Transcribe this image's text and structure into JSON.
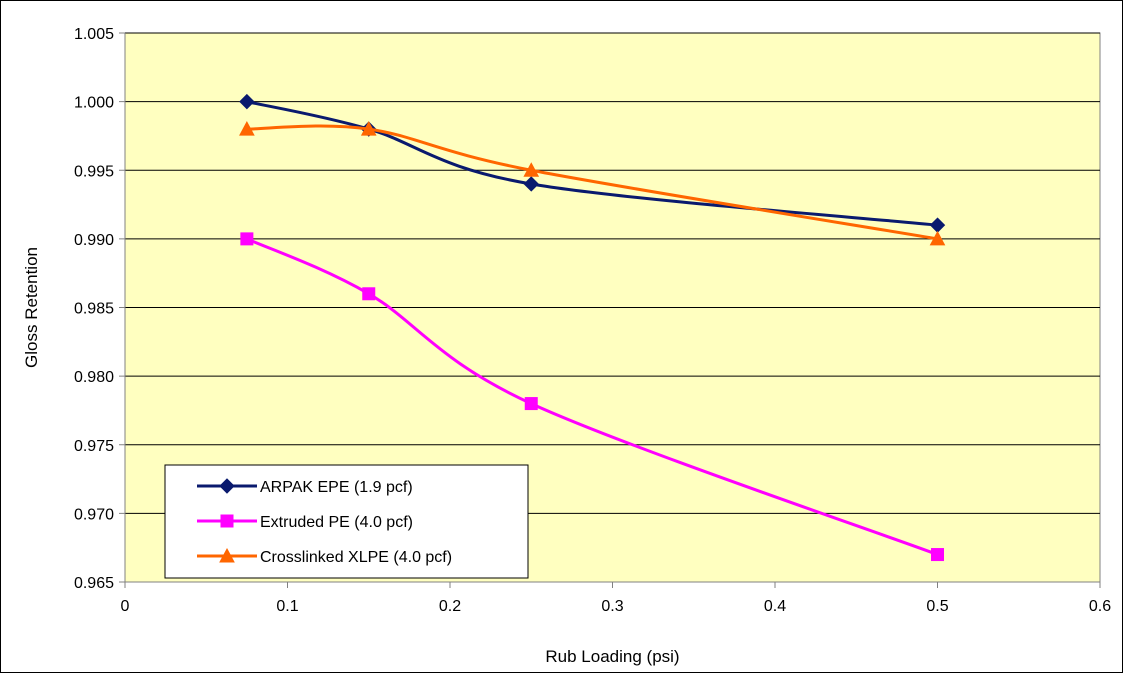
{
  "chart_data": {
    "type": "line",
    "title": "",
    "xlabel": "Rub Loading (psi)",
    "ylabel": "Gloss Retention",
    "xlim": [
      0,
      0.6
    ],
    "ylim": [
      0.965,
      1.005
    ],
    "x_ticks": [
      0,
      0.1,
      0.2,
      0.3,
      0.4,
      0.5,
      0.6
    ],
    "x_tick_labels": [
      "0",
      "0.1",
      "0.2",
      "0.3",
      "0.4",
      "0.5",
      "0.6"
    ],
    "y_ticks": [
      0.965,
      0.97,
      0.975,
      0.98,
      0.985,
      0.99,
      0.995,
      1.0,
      1.005
    ],
    "y_tick_labels": [
      "0.965",
      "0.970",
      "0.975",
      "0.980",
      "0.985",
      "0.990",
      "0.995",
      "1.000",
      "1.005"
    ],
    "grid": true,
    "plot_background": "#ffffc0",
    "legend_position": "bottom-left",
    "series": [
      {
        "name": "ARPAK EPE (1.9 pcf)",
        "color": "#0a1a6e",
        "marker": "diamond",
        "x": [
          0.075,
          0.15,
          0.25,
          0.5
        ],
        "y": [
          1.0,
          0.998,
          0.994,
          0.991
        ]
      },
      {
        "name": "Extruded PE (4.0 pcf)",
        "color": "#ff00ff",
        "marker": "square",
        "x": [
          0.075,
          0.15,
          0.25,
          0.5
        ],
        "y": [
          0.99,
          0.986,
          0.978,
          0.967
        ]
      },
      {
        "name": "Crosslinked XLPE (4.0 pcf)",
        "color": "#ff6600",
        "marker": "triangle",
        "x": [
          0.075,
          0.15,
          0.25,
          0.5
        ],
        "y": [
          0.998,
          0.998,
          0.995,
          0.99
        ]
      }
    ]
  }
}
